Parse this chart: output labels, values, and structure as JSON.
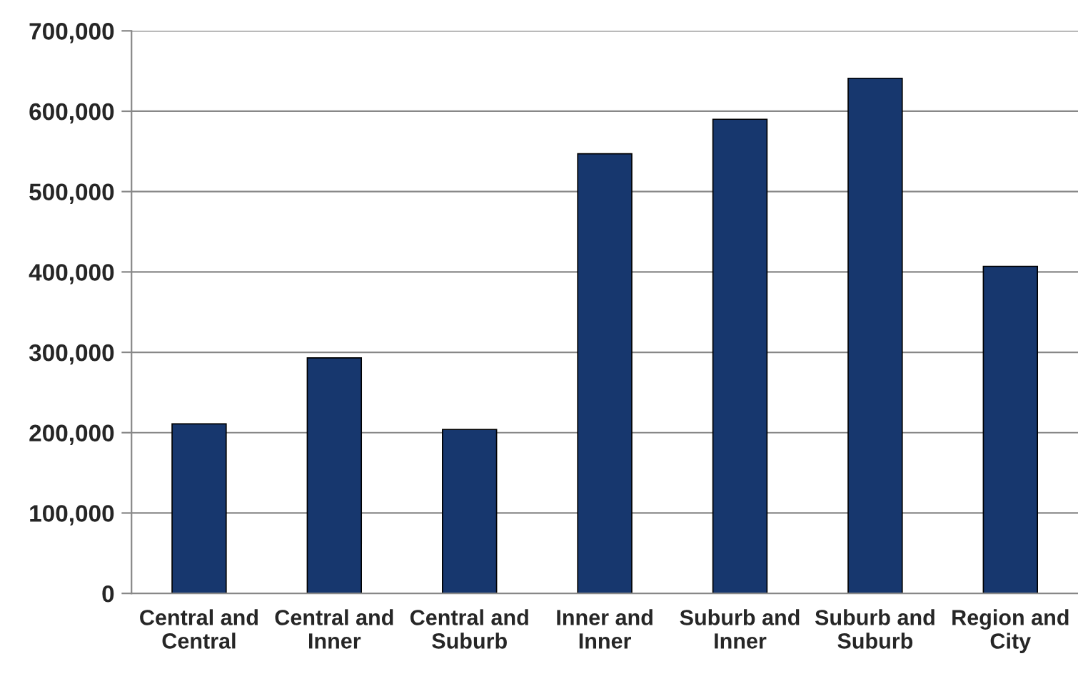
{
  "chart_data": {
    "type": "bar",
    "categories": [
      "Central and Central",
      "Central and Inner",
      "Central and Suburb",
      "Inner and Inner",
      "Suburb and Inner",
      "Suburb and Suburb",
      "Region and City"
    ],
    "values": [
      211000,
      293000,
      204000,
      547000,
      590000,
      641000,
      407000
    ],
    "color": "#17376e",
    "ylim": [
      0,
      700000
    ],
    "yticks": [
      {
        "value": 0,
        "label": "0"
      },
      {
        "value": 100000,
        "label": "100,000"
      },
      {
        "value": 200000,
        "label": "200,000"
      },
      {
        "value": 300000,
        "label": "300,000"
      },
      {
        "value": 400000,
        "label": "400,000"
      },
      {
        "value": 500000,
        "label": "500,000"
      },
      {
        "value": 600000,
        "label": "600,000"
      },
      {
        "value": 700000,
        "label": "700,000"
      }
    ],
    "grid": "y"
  }
}
